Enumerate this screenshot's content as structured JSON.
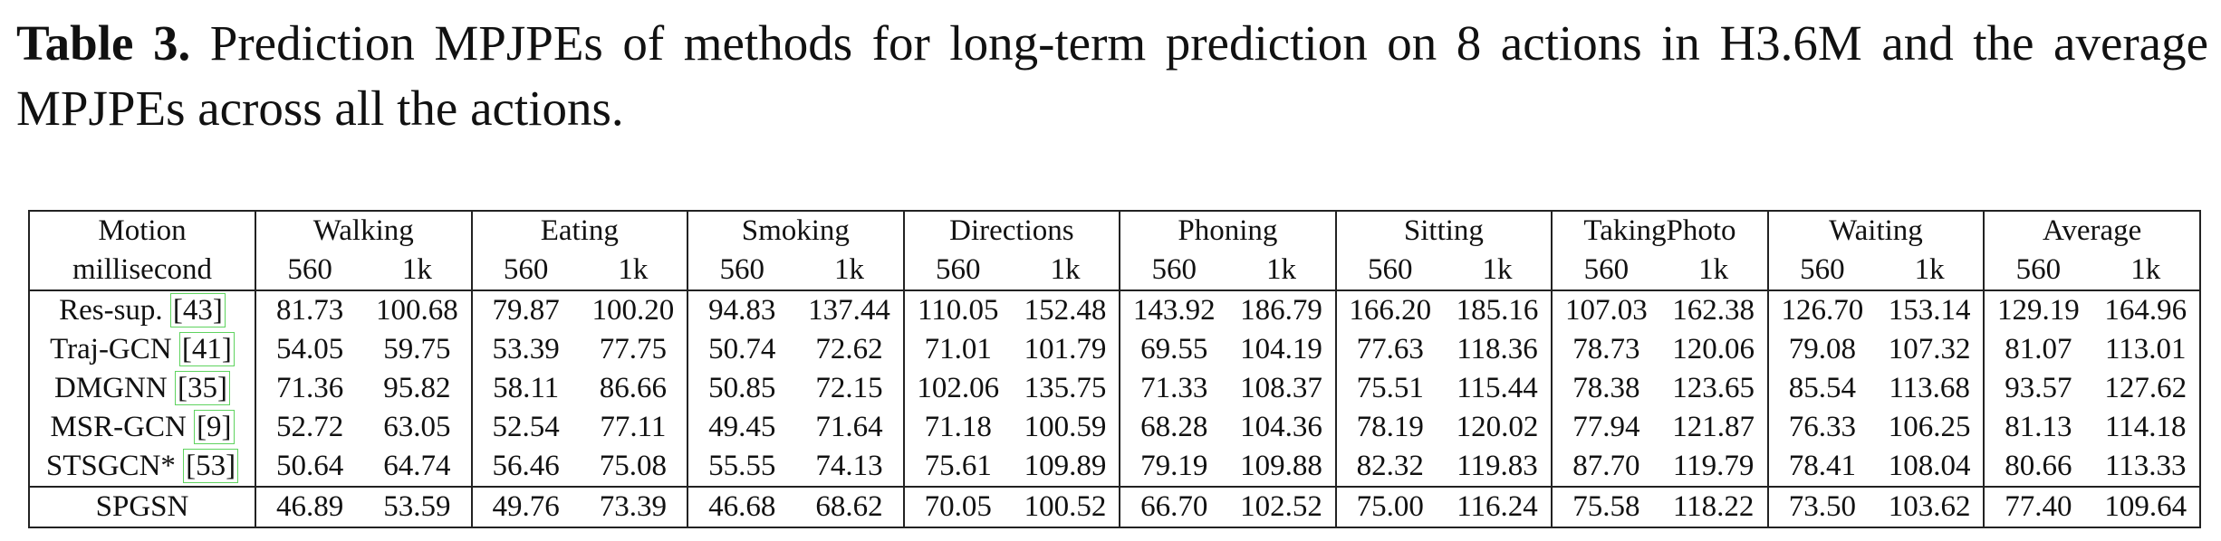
{
  "caption": {
    "label": "Table 3.",
    "text": "Prediction MPJPEs of methods for long-term prediction on 8 actions in H3.6M and the average MPJPEs across all the actions."
  },
  "table": {
    "corner_top": "Motion",
    "corner_bottom": "millisecond",
    "actions": [
      "Walking",
      "Eating",
      "Smoking",
      "Directions",
      "Phoning",
      "Sitting",
      "TakingPhoto",
      "Waiting",
      "Average"
    ],
    "horizons": [
      "560",
      "1k"
    ],
    "rows": [
      {
        "method": "Res-sup.",
        "ref": "[43]",
        "values": [
          "81.73",
          "100.68",
          "79.87",
          "100.20",
          "94.83",
          "137.44",
          "110.05",
          "152.48",
          "143.92",
          "186.79",
          "166.20",
          "185.16",
          "107.03",
          "162.38",
          "126.70",
          "153.14",
          "129.19",
          "164.96"
        ],
        "bold": []
      },
      {
        "method": "Traj-GCN",
        "ref": "[41]",
        "values": [
          "54.05",
          "59.75",
          "53.39",
          "77.75",
          "50.74",
          "72.62",
          "71.01",
          "101.79",
          "69.55",
          "104.19",
          "77.63",
          "118.36",
          "78.73",
          "120.06",
          "79.08",
          "107.32",
          "81.07",
          "113.01"
        ],
        "bold": []
      },
      {
        "method": "DMGNN",
        "ref": "[35]",
        "values": [
          "71.36",
          "95.82",
          "58.11",
          "86.66",
          "50.85",
          "72.15",
          "102.06",
          "135.75",
          "71.33",
          "108.37",
          "75.51",
          "115.44",
          "78.38",
          "123.65",
          "85.54",
          "113.68",
          "93.57",
          "127.62"
        ],
        "bold": [
          11
        ]
      },
      {
        "method": "MSR-GCN",
        "ref": "[9]",
        "values": [
          "52.72",
          "63.05",
          "52.54",
          "77.11",
          "49.45",
          "71.64",
          "71.18",
          "100.59",
          "68.28",
          "104.36",
          "78.19",
          "120.02",
          "77.94",
          "121.87",
          "76.33",
          "106.25",
          "81.13",
          "114.18"
        ],
        "bold": []
      },
      {
        "method": "STSGCN*",
        "ref": "[53]",
        "values": [
          "50.64",
          "64.74",
          "56.46",
          "75.08",
          "55.55",
          "74.13",
          "75.61",
          "109.89",
          "79.19",
          "109.88",
          "82.32",
          "119.83",
          "87.70",
          "119.79",
          "78.41",
          "108.04",
          "80.66",
          "113.33"
        ],
        "bold": []
      },
      {
        "method": "SPGSN",
        "ref": "",
        "values": [
          "46.89",
          "53.59",
          "49.76",
          "73.39",
          "46.68",
          "68.62",
          "70.05",
          "100.52",
          "66.70",
          "102.52",
          "75.00",
          "116.24",
          "75.58",
          "118.22",
          "73.50",
          "103.62",
          "77.40",
          "109.64"
        ],
        "bold": [
          0,
          1,
          2,
          3,
          4,
          5,
          6,
          7,
          8,
          9,
          10,
          12,
          13,
          14,
          15,
          16,
          17
        ]
      }
    ]
  }
}
